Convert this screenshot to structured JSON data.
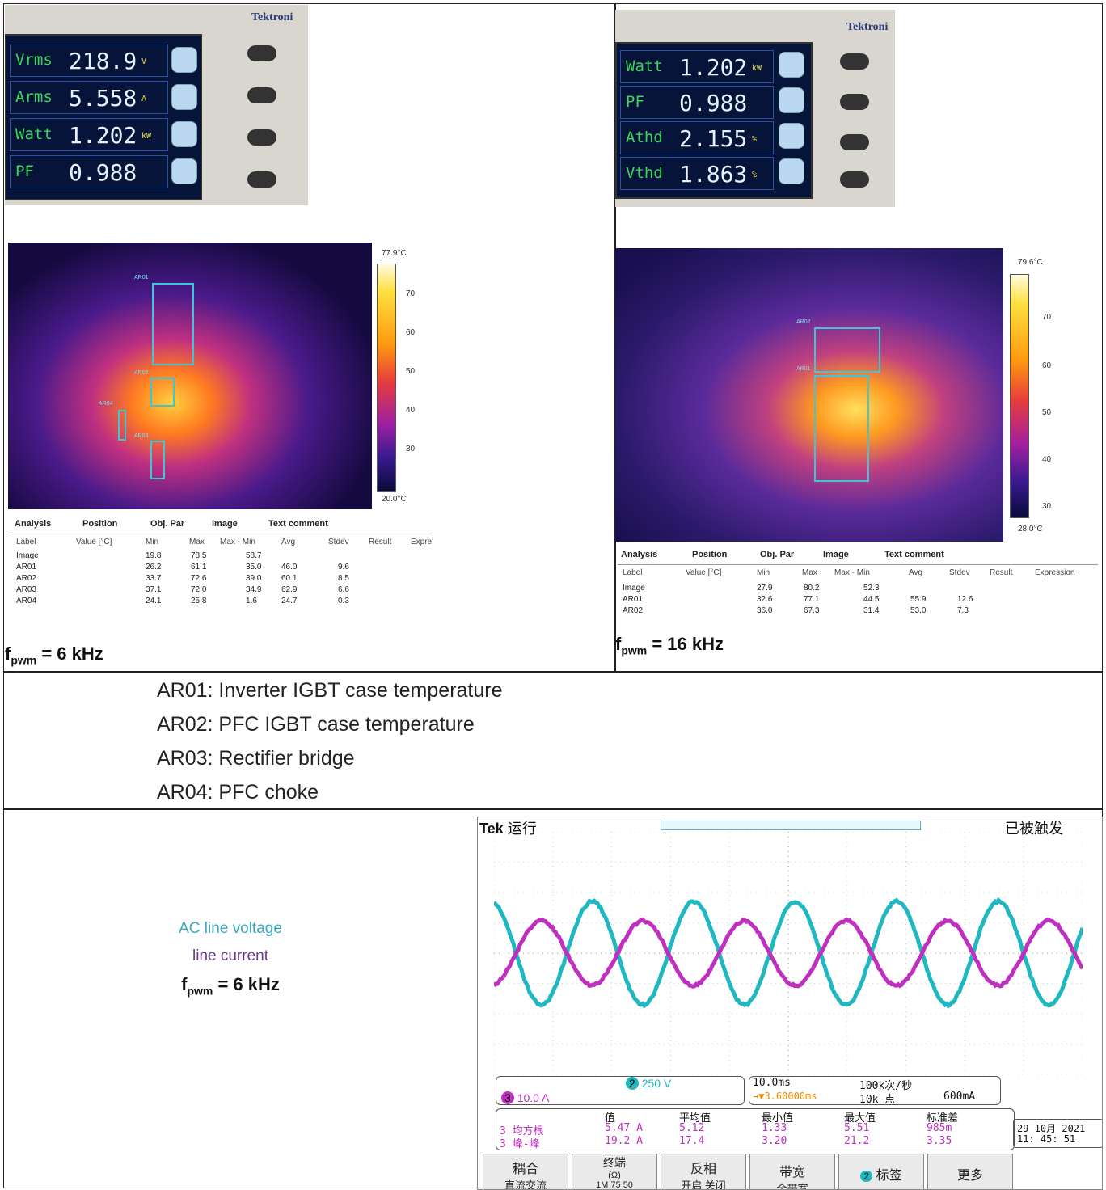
{
  "meter_left": {
    "brand": "Tektroni",
    "rows": [
      {
        "label": "Vrms",
        "value": "218.9",
        "unit": "V"
      },
      {
        "label": "Arms",
        "value": "5.558",
        "unit": "A"
      },
      {
        "label": "Watt",
        "value": "1.202",
        "unit": "kW"
      },
      {
        "label": "PF",
        "value": "0.988",
        "unit": ""
      }
    ],
    "mode": "Normal"
  },
  "meter_right": {
    "brand": "Tektroni",
    "rows": [
      {
        "label": "Watt",
        "value": "1.202",
        "unit": "kW"
      },
      {
        "label": "PF",
        "value": "0.988",
        "unit": ""
      },
      {
        "label": "Athd",
        "value": "2.155",
        "unit": "%"
      },
      {
        "label": "Vthd",
        "value": "1.863",
        "unit": "%"
      }
    ],
    "mode": "Normal"
  },
  "thermal_left": {
    "max": "77.9°C",
    "min": "20.0°C",
    "ticks": [
      "70",
      "60",
      "50",
      "40",
      "30"
    ],
    "rois": [
      "AR01",
      "AR02",
      "AR04",
      "AR03"
    ],
    "tabs": [
      "Analysis",
      "Position",
      "Obj. Par",
      "Image",
      "Text comment"
    ],
    "headers": [
      "Label",
      "Value [°C]",
      "Min",
      "Max",
      "Max - Min",
      "Avg",
      "Stdev",
      "Result",
      "Expre"
    ],
    "rows": [
      [
        "Image",
        "",
        "19.8",
        "78.5",
        "58.7",
        "",
        ""
      ],
      [
        "AR01",
        "",
        "26.2",
        "61.1",
        "35.0",
        "46.0",
        "9.6"
      ],
      [
        "AR02",
        "",
        "33.7",
        "72.6",
        "39.0",
        "60.1",
        "8.5"
      ],
      [
        "AR03",
        "",
        "37.1",
        "72.0",
        "34.9",
        "62.9",
        "6.6"
      ],
      [
        "AR04",
        "",
        "24.1",
        "25.8",
        "1.6",
        "24.7",
        "0.3"
      ]
    ],
    "caption_main": "f",
    "caption_sub": "pwm",
    "caption_rest": " = 6 kHz"
  },
  "thermal_right": {
    "max": "79.6°C",
    "min": "28.0°C",
    "ticks": [
      "70",
      "60",
      "50",
      "40",
      "30"
    ],
    "rois": [
      "AR02",
      "AR01"
    ],
    "tabs": [
      "Analysis",
      "Position",
      "Obj. Par",
      "Image",
      "Text comment"
    ],
    "headers": [
      "Label",
      "Value [°C]",
      "Min",
      "Max",
      "Max - Min",
      "Avg",
      "Stdev",
      "Result",
      "Expression"
    ],
    "rows": [
      [
        "Image",
        "",
        "27.9",
        "80.2",
        "52.3",
        "",
        ""
      ],
      [
        "AR01",
        "",
        "32.6",
        "77.1",
        "44.5",
        "55.9",
        "12.6"
      ],
      [
        "AR02",
        "",
        "36.0",
        "67.3",
        "31.4",
        "53.0",
        "7.3"
      ]
    ],
    "caption_main": "f",
    "caption_sub": "pwm",
    "caption_rest": " = 16 kHz"
  },
  "legend_notes": [
    "AR01: Inverter IGBT case temperature",
    "AR02: PFC IGBT case temperature",
    "AR03: Rectifier bridge",
    "AR04: PFC choke"
  ],
  "scope_caption": {
    "voltage": "AC line voltage",
    "voltage_color": "#3aa8c0",
    "current": "line current",
    "current_color": "#6a3a8a",
    "f": "f",
    "sub": "pwm",
    "rest": " = 6 kHz"
  },
  "scope": {
    "brand": "Tek",
    "status": "运行",
    "trigger": "已被触发",
    "ch2_scale": "250 V",
    "ch3_scale": "10.0 A",
    "timebase": "10.0ms",
    "trig_pos": "→▼3.60000ms",
    "sample_rate": "100k次/秒",
    "points": "10k 点",
    "trig_level": "600mA",
    "meas_headers": [
      "值",
      "平均值",
      "最小值",
      "最大值",
      "标准差"
    ],
    "meas": [
      {
        "name": "均方根",
        "values": [
          "5.47 A",
          "5.12",
          "1.33",
          "5.51",
          "985m"
        ]
      },
      {
        "name": "峰-峰",
        "values": [
          "19.2 A",
          "17.4",
          "3.20",
          "21.2",
          "3.35"
        ]
      }
    ],
    "date": "29 10月  2021",
    "time": "11: 45: 51",
    "buttons": [
      "耦合",
      "终端",
      "反相",
      "带宽",
      "标签",
      "更多"
    ],
    "button_sub": [
      "直流交流",
      "1M  75  50",
      "开启  关闭",
      "全带宽",
      "",
      ""
    ],
    "button_term_sub": "(Ω)",
    "ch3_color": "#c030c0",
    "ch2_color": "#20b8c0"
  }
}
